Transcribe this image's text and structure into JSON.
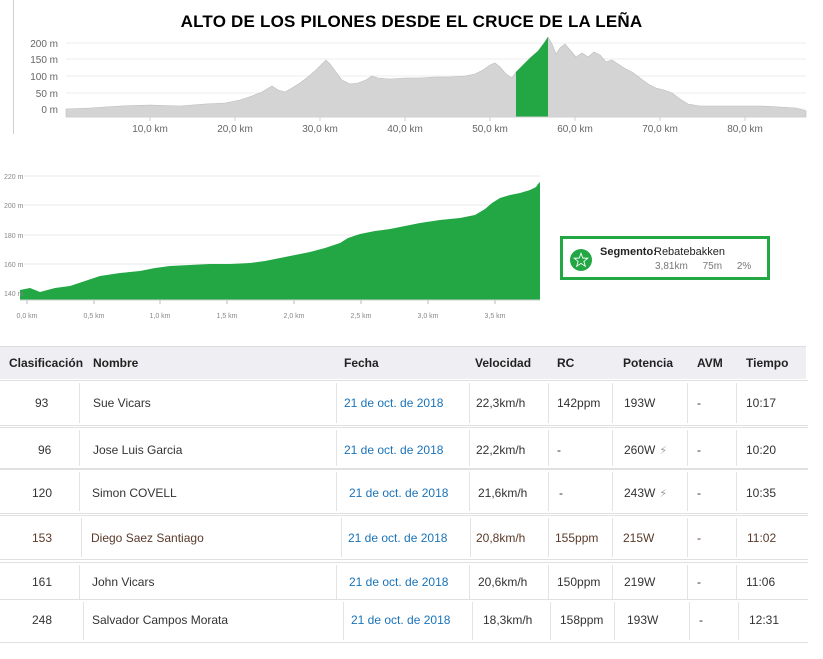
{
  "page_title": "ALTO DE LOS PILONES DESDE EL CRUCE DE LA LEÑA",
  "top_profile": {
    "y_ticks": [
      "200 m",
      "150 m",
      "100 m",
      "50 m",
      "0 m"
    ],
    "x_ticks": [
      "10,0 km",
      "20,0 km",
      "30,0 km",
      "40,0 km",
      "50,0 km",
      "60,0 km",
      "70,0 km",
      "80,0 km"
    ],
    "fill_color": "#d4d4d4",
    "highlight_color": "#22a744"
  },
  "segment_profile": {
    "y_ticks": [
      "220 m",
      "200 m",
      "180 m",
      "160 m",
      "140 m"
    ],
    "x_ticks": [
      "0,0 km",
      "0,5 km",
      "1,0 km",
      "1,5 km",
      "2,0 km",
      "2,5 km",
      "3,0 km",
      "3,5 km"
    ],
    "fill_color": "#22a744"
  },
  "segment_card": {
    "label": "Segmento:",
    "name": "Rebatebakken",
    "distance": "3,81km",
    "elevation": "75m",
    "grade": "2%"
  },
  "table": {
    "headers": [
      "Clasificación",
      "Nombre",
      "Fecha",
      "Velocidad",
      "RC",
      "Potencia",
      "AVM",
      "Tiempo"
    ],
    "rows": [
      {
        "rank": "93",
        "name": "Sue Vicars",
        "date": "21 de oct. de 2018",
        "speed": "22,3km/h",
        "rc": "142ppm",
        "power": "193W",
        "bolt": "",
        "avm": "-",
        "time": "10:17"
      },
      {
        "rank": "96",
        "name": "Jose Luis Garcia",
        "date": "21 de oct. de 2018",
        "speed": "22,2km/h",
        "rc": "-",
        "power": "260W",
        "bolt": "⚡",
        "avm": "-",
        "time": "10:20"
      },
      {
        "rank": "120",
        "name": "Simon COVELL",
        "date": "21 de oct. de 2018",
        "speed": "21,6km/h",
        "rc": "-",
        "power": "243W",
        "bolt": "⚡",
        "avm": "-",
        "time": "10:35"
      },
      {
        "rank": "153",
        "name": "Diego Saez Santiago",
        "date": "21 de oct. de 2018",
        "speed": "20,8km/h",
        "rc": "155ppm",
        "power": "215W",
        "bolt": "",
        "avm": "-",
        "time": "11:02"
      },
      {
        "rank": "161",
        "name": "John Vicars",
        "date": "21 de oct. de 2018",
        "speed": "20,6km/h",
        "rc": "150ppm",
        "power": "219W",
        "bolt": "",
        "avm": "-",
        "time": "11:06"
      },
      {
        "rank": "248",
        "name": "Salvador Campos Morata",
        "date": "21 de oct. de 2018",
        "speed": "18,3km/h",
        "rc": "158ppm",
        "power": "193W",
        "bolt": "",
        "avm": "-",
        "time": "12:31"
      }
    ]
  }
}
